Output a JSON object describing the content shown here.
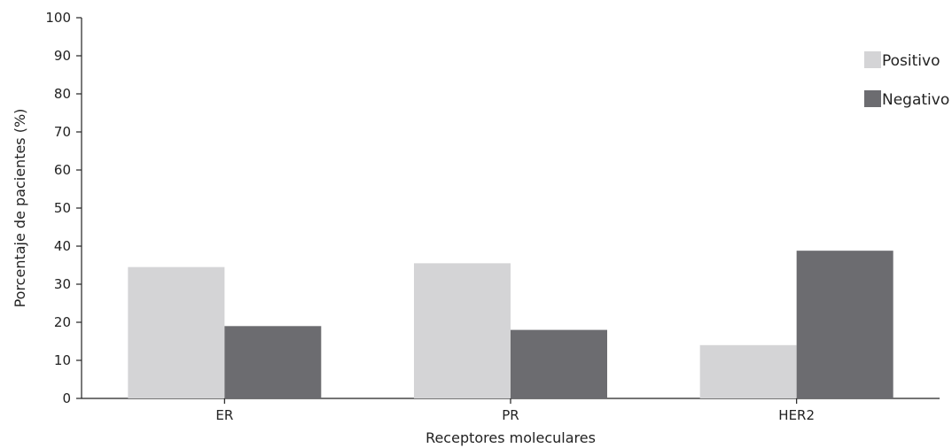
{
  "chart_data": {
    "type": "bar",
    "title": "",
    "xlabel": "Receptores moleculares",
    "ylabel": "Porcentaje de pacientes (%)",
    "categories": [
      "ER",
      "PR",
      "HER2"
    ],
    "series": [
      {
        "name": "Positivo",
        "values": [
          34.5,
          35.5,
          14
        ],
        "color": "#d4d4d6"
      },
      {
        "name": "Negativo",
        "values": [
          19,
          18,
          38.8
        ],
        "color": "#6c6c70"
      }
    ],
    "ylim": [
      0,
      100
    ],
    "yticks": [
      0,
      10,
      20,
      30,
      40,
      50,
      60,
      70,
      80,
      90,
      100
    ],
    "grid": false,
    "legend_position": "top-right"
  }
}
